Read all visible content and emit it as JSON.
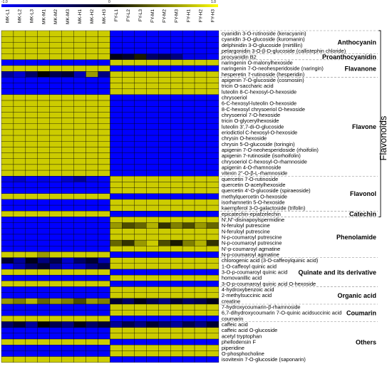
{
  "chart_data": {
    "type": "heatmap",
    "title": "",
    "color_scale": {
      "min": -1.0,
      "mid": 0,
      "max": 1.0,
      "low_color": "#0000ff",
      "mid_color": "#000000",
      "high_color": "#ffff00"
    },
    "colorbar_ticks": [
      "-1.0",
      "0",
      "1.0"
    ],
    "columns": [
      "MK-L1",
      "MK-L2",
      "MK-L3",
      "MK-M1",
      "MK-M2",
      "MK-M3",
      "MK-H1",
      "MK-H2",
      "MK-H3",
      "FY-L1",
      "FY-L2",
      "FY-L3",
      "FY-M1",
      "FY-M2",
      "FY-M3",
      "FY-H1",
      "FY-H2",
      "FY-H3"
    ],
    "rows": [
      "cyanidin 3-O-rutinoside (keracyanin)",
      "cyanidin 3-O-glucoside (kuromanin)",
      "delphinidin 3-O-glucoside (mirtillin)",
      "pelargonidin 3-O-β-D-glucoside (callistephin chloride)",
      "procyanidin B2",
      "naringenin O-malonylhexoside",
      "naringenin 7-O-neohesperidoside (naringin)",
      "hesperetin 7-rutinoside (hesperidin)",
      "apigenin 7-O-glucoside (cosmosiin)",
      "tricin O-saccharic acid",
      "luteolin 8-C-hexosyl-O-hexoside",
      "chrysoeriol",
      "6-C-hexosyl-luteolin O-hexoside",
      "8-C-hexosyl chrysoeriol O-hexoside",
      "chrysoeriol 7-O-hexoside",
      "tricin O-glycerylhexoside",
      "luteolin 3',7-di-O-glucoside",
      "eriodictiol C-hexosyl-O-hexoside",
      "chrysin O-hexoside",
      "chrysin 5-O-glucoside (toringin)",
      "apigenin 7-O-neohesperidoside (rhoifolin)",
      "apigenin 7-rutinoside (isorhoifolin)",
      "chrysoeriol C-hexosyl-O-rhamnoside",
      "apigenin 4-O-rhamnoside",
      "vitexin 2\"-O-β-L-rhamnoside",
      "quercetin 7-O-rutinoside",
      "quercetin O-acetylhexoside",
      "quercetin 4'-O-glucoside (spiraeoside)",
      "methylquercetin O-hexoside",
      "isorhamnetin 5-O-hexoside",
      "kaempferol 3-O-galactoside (trifolin)",
      "epicatechin-epiafzelechin",
      "N',N\"-disinapoylspermidine",
      "N-feruloyl putrescine",
      "N-feruloyl putrescine",
      "N-p-coumaroyl putrescine",
      "N-p-coumaroyl putrescine",
      "N'-p-coumaroyl agmatine",
      "N-p-coumaroyl agmatine",
      "chlorogenic acid (3-O-caffeoylquinic acid)",
      "1-O-caffeoyl quinic acid",
      "3-O-p-coumaroyl quinic acid",
      "homovanillic acid",
      "3-O-p-coumaroyl quinic acid O-hexoside",
      "4-hydroxybenzoic acid",
      "2-methylsuccinic acid",
      "creatine",
      "7-hydroxycoumarin-β-rhamnoside",
      "6,7-dihydroxycoumarin 7-O-quinic acidsuccinic acid",
      "coumarin",
      "caffeic acid",
      "caffeic acid O-glucoside",
      "acetyl tryptophan",
      "phellodensin F",
      "piperidine",
      "O-phosphocholine",
      "isovitexin 7-O-glucoside (saponarin)"
    ],
    "groups": [
      {
        "name": "Anthocyanin",
        "start": 0,
        "end": 3
      },
      {
        "name": "Proanthocyanidin",
        "start": 4,
        "end": 4
      },
      {
        "name": "Flavanone",
        "start": 5,
        "end": 7
      },
      {
        "name": "Flavone",
        "start": 8,
        "end": 24
      },
      {
        "name": "Flavonol",
        "start": 25,
        "end": 30
      },
      {
        "name": "Catechin",
        "start": 31,
        "end": 31
      },
      {
        "name": "Phenolamide",
        "start": 32,
        "end": 38
      },
      {
        "name": "Quinate and its derivative",
        "start": 39,
        "end": 43
      },
      {
        "name": "Organic acid",
        "start": 44,
        "end": 46
      },
      {
        "name": "Coumarin",
        "start": 47,
        "end": 49
      },
      {
        "name": "Others",
        "start": 50,
        "end": 56
      }
    ],
    "bracket_label": "Flavonoids",
    "values": [
      [
        0.8,
        0.8,
        0.8,
        0.8,
        0.8,
        0.8,
        0.8,
        0.8,
        0.8,
        -1.0,
        -1.0,
        -1.0,
        -1.0,
        -1.0,
        -1.0,
        -1.0,
        -1.0,
        -1.0
      ],
      [
        0.8,
        0.8,
        0.8,
        0.8,
        0.8,
        0.8,
        0.8,
        0.8,
        0.8,
        -1.0,
        -1.0,
        -1.0,
        -1.0,
        -1.0,
        -1.0,
        -1.0,
        -1.0,
        -1.0
      ],
      [
        0.8,
        0.8,
        0.8,
        0.8,
        0.8,
        0.8,
        0.8,
        0.8,
        0.8,
        -1.0,
        -1.0,
        -1.0,
        -1.0,
        -1.0,
        -1.0,
        -1.0,
        -1.0,
        -1.0
      ],
      [
        0.8,
        0.8,
        0.8,
        0.8,
        0.8,
        0.8,
        0.8,
        0.8,
        0.8,
        -1.0,
        -1.0,
        -1.0,
        -1.0,
        -1.0,
        -1.0,
        -1.0,
        -1.0,
        -1.0
      ],
      [
        0.8,
        0.8,
        0.8,
        0.8,
        0.8,
        0.8,
        0.8,
        0.8,
        0.8,
        -0.1,
        -0.2,
        0.1,
        -0.4,
        -0.3,
        -0.5,
        -0.9,
        -0.9,
        -1.0
      ],
      [
        -1.0,
        -1.0,
        -1.0,
        -1.0,
        -1.0,
        -1.0,
        -1.0,
        -1.0,
        -1.0,
        0.8,
        0.8,
        0.8,
        0.8,
        0.8,
        0.8,
        0.8,
        0.8,
        0.8
      ],
      [
        0.8,
        0.8,
        0.8,
        0.8,
        0.8,
        0.8,
        0.8,
        0.8,
        0.8,
        -1.0,
        -1.0,
        -1.0,
        -1.0,
        -1.0,
        -1.0,
        -1.0,
        -1.0,
        -1.0
      ],
      [
        -0.6,
        -0.8,
        -0.4,
        0.0,
        -0.3,
        -0.2,
        -0.7,
        0.6,
        -0.5,
        0.8,
        0.8,
        0.8,
        0.8,
        0.8,
        0.8,
        0.8,
        0.8,
        0.8
      ],
      [
        -1.0,
        -1.0,
        -1.0,
        -1.0,
        -1.0,
        -1.0,
        -1.0,
        -1.0,
        -1.0,
        0.8,
        0.8,
        0.8,
        0.8,
        0.8,
        0.8,
        0.8,
        0.8,
        0.8
      ],
      [
        -1.0,
        -1.0,
        -1.0,
        -1.0,
        -1.0,
        -1.0,
        -1.0,
        -1.0,
        -1.0,
        0.8,
        0.8,
        0.8,
        0.8,
        0.8,
        0.8,
        0.8,
        0.8,
        0.8
      ],
      [
        -1.0,
        -1.0,
        -1.0,
        -1.0,
        -1.0,
        -1.0,
        -1.0,
        -1.0,
        -1.0,
        0.8,
        0.8,
        0.8,
        0.8,
        0.8,
        0.8,
        0.8,
        0.8,
        0.8
      ],
      [
        0.8,
        0.8,
        0.8,
        0.8,
        0.8,
        0.8,
        0.8,
        0.8,
        0.8,
        -1.0,
        -1.0,
        -1.0,
        -1.0,
        -1.0,
        -1.0,
        -1.0,
        -1.0,
        -1.0
      ],
      [
        0.8,
        0.8,
        0.8,
        0.8,
        0.8,
        0.8,
        0.8,
        0.8,
        0.8,
        -1.0,
        -1.0,
        -1.0,
        -1.0,
        -1.0,
        -1.0,
        -1.0,
        -1.0,
        -1.0
      ],
      [
        0.8,
        0.8,
        0.8,
        0.8,
        0.8,
        0.8,
        0.8,
        0.8,
        0.8,
        -1.0,
        -1.0,
        -1.0,
        -1.0,
        -1.0,
        -1.0,
        -1.0,
        -1.0,
        -1.0
      ],
      [
        0.8,
        0.8,
        0.8,
        0.8,
        0.8,
        0.8,
        0.8,
        0.8,
        0.8,
        -1.0,
        -1.0,
        -1.0,
        -1.0,
        -1.0,
        -1.0,
        -1.0,
        -1.0,
        -1.0
      ],
      [
        0.8,
        0.8,
        0.8,
        0.8,
        0.8,
        0.8,
        0.8,
        0.8,
        0.8,
        -1.0,
        -1.0,
        -1.0,
        -1.0,
        -1.0,
        -1.0,
        -1.0,
        -1.0,
        -1.0
      ],
      [
        0.8,
        0.8,
        0.8,
        0.8,
        0.8,
        0.8,
        0.8,
        0.8,
        0.8,
        -1.0,
        -1.0,
        -1.0,
        -1.0,
        -1.0,
        -1.0,
        -1.0,
        -1.0,
        -1.0
      ],
      [
        0.8,
        0.8,
        0.8,
        0.8,
        0.8,
        0.8,
        0.8,
        0.8,
        0.8,
        -1.0,
        -1.0,
        -1.0,
        -1.0,
        -1.0,
        -1.0,
        -1.0,
        -1.0,
        -1.0
      ],
      [
        0.8,
        0.8,
        0.8,
        0.8,
        0.8,
        0.8,
        0.8,
        0.8,
        0.8,
        -1.0,
        -1.0,
        -1.0,
        -1.0,
        -1.0,
        -1.0,
        -1.0,
        -1.0,
        -1.0
      ],
      [
        0.8,
        0.8,
        0.8,
        0.8,
        0.8,
        0.8,
        0.8,
        0.8,
        0.8,
        -1.0,
        -1.0,
        -1.0,
        -1.0,
        -1.0,
        -1.0,
        -1.0,
        -1.0,
        -1.0
      ],
      [
        0.8,
        0.8,
        0.8,
        0.8,
        0.8,
        0.8,
        0.8,
        0.8,
        0.8,
        -1.0,
        -1.0,
        -1.0,
        -1.0,
        -1.0,
        -1.0,
        -1.0,
        -1.0,
        -1.0
      ],
      [
        0.8,
        0.8,
        0.8,
        0.8,
        0.8,
        0.8,
        0.8,
        0.8,
        0.8,
        -1.0,
        -1.0,
        -1.0,
        -1.0,
        -1.0,
        -1.0,
        -1.0,
        -1.0,
        -1.0
      ],
      [
        0.8,
        0.8,
        0.8,
        0.8,
        0.8,
        0.8,
        0.8,
        0.8,
        0.8,
        -1.0,
        -1.0,
        -1.0,
        -1.0,
        -1.0,
        -1.0,
        -1.0,
        -1.0,
        -1.0
      ],
      [
        0.8,
        0.8,
        0.8,
        0.8,
        0.8,
        0.8,
        0.8,
        0.8,
        0.8,
        -1.0,
        -1.0,
        -1.0,
        -1.0,
        -1.0,
        -1.0,
        -1.0,
        -1.0,
        -1.0
      ],
      [
        0.8,
        0.8,
        0.8,
        0.8,
        0.8,
        0.8,
        0.8,
        0.8,
        0.8,
        -1.0,
        -1.0,
        -1.0,
        -1.0,
        -1.0,
        -1.0,
        -1.0,
        -1.0,
        -1.0
      ],
      [
        -0.9,
        -0.8,
        -1.0,
        -0.9,
        -1.0,
        -0.8,
        -0.6,
        -0.9,
        -1.0,
        0.8,
        0.8,
        0.8,
        0.8,
        0.8,
        0.8,
        0.8,
        0.8,
        0.8
      ],
      [
        -1.0,
        -1.0,
        -1.0,
        -1.0,
        -1.0,
        -1.0,
        -1.0,
        -1.0,
        -1.0,
        0.8,
        0.8,
        0.8,
        0.8,
        0.8,
        0.8,
        0.8,
        0.8,
        0.8
      ],
      [
        -1.0,
        -1.0,
        -1.0,
        -1.0,
        -1.0,
        -1.0,
        -1.0,
        -1.0,
        -1.0,
        0.8,
        0.8,
        0.8,
        0.8,
        0.8,
        0.8,
        0.8,
        0.8,
        0.8
      ],
      [
        0.8,
        0.8,
        0.8,
        0.8,
        0.8,
        0.8,
        0.8,
        0.8,
        0.8,
        -1.0,
        -1.0,
        -1.0,
        -1.0,
        -1.0,
        -1.0,
        -1.0,
        -1.0,
        -1.0
      ],
      [
        -1.0,
        -1.0,
        -1.0,
        -1.0,
        -1.0,
        -1.0,
        -1.0,
        -1.0,
        -1.0,
        0.8,
        0.8,
        0.8,
        0.8,
        0.8,
        0.8,
        0.8,
        0.8,
        0.8
      ],
      [
        -1.0,
        -1.0,
        -1.0,
        -1.0,
        -1.0,
        -1.0,
        -1.0,
        -1.0,
        -1.0,
        0.8,
        0.8,
        0.8,
        0.8,
        0.8,
        0.8,
        0.8,
        0.8,
        0.8
      ],
      [
        0.8,
        0.8,
        0.8,
        0.8,
        0.8,
        0.8,
        0.8,
        0.8,
        0.8,
        -1.0,
        -1.0,
        -1.0,
        -1.0,
        -1.0,
        -1.0,
        -1.0,
        -1.0,
        -1.0
      ],
      [
        -1.0,
        -1.0,
        -1.0,
        -1.0,
        -1.0,
        -1.0,
        -1.0,
        -1.0,
        -1.0,
        0.8,
        0.8,
        0.8,
        0.8,
        0.8,
        0.8,
        0.8,
        0.8,
        0.8
      ],
      [
        -1.0,
        -1.0,
        -1.0,
        -1.0,
        -1.0,
        -1.0,
        -1.0,
        -1.0,
        -1.0,
        0.6,
        0.3,
        0.4,
        0.7,
        0.2,
        0.5,
        0.3,
        0.6,
        0.4
      ],
      [
        -1.0,
        -1.0,
        -1.0,
        -1.0,
        -1.0,
        -1.0,
        -1.0,
        -1.0,
        -1.0,
        0.8,
        0.8,
        0.8,
        0.8,
        0.8,
        0.8,
        0.8,
        0.8,
        0.8
      ],
      [
        -1.0,
        -1.0,
        -1.0,
        -1.0,
        -1.0,
        -1.0,
        -1.0,
        -1.0,
        -1.0,
        0.8,
        0.8,
        0.8,
        0.8,
        0.8,
        0.8,
        0.8,
        0.8,
        0.8
      ],
      [
        -1.0,
        -1.0,
        -1.0,
        -1.0,
        -1.0,
        -1.0,
        -1.0,
        -1.0,
        -1.0,
        0.4,
        0.2,
        0.6,
        0.8,
        0.3,
        0.1,
        0.5,
        0.7,
        0.2
      ],
      [
        -1.0,
        -1.0,
        -1.0,
        -1.0,
        -1.0,
        -1.0,
        -1.0,
        -1.0,
        -1.0,
        0.8,
        0.8,
        0.8,
        0.8,
        0.8,
        0.8,
        0.8,
        0.8,
        0.8
      ],
      [
        0.8,
        0.8,
        0.8,
        0.6,
        0.8,
        0.8,
        0.8,
        0.8,
        0.8,
        -1.0,
        -1.0,
        -1.0,
        -1.0,
        -1.0,
        -1.0,
        -1.0,
        -1.0,
        -1.0
      ],
      [
        -0.2,
        -0.6,
        -0.1,
        -0.5,
        -0.3,
        -0.8,
        -0.4,
        -0.2,
        -0.7,
        0.8,
        0.8,
        0.8,
        0.8,
        0.8,
        0.8,
        0.8,
        0.8,
        0.8
      ],
      [
        -1.0,
        -0.7,
        -0.4,
        -0.2,
        -0.6,
        -0.9,
        -0.8,
        -0.5,
        -0.3,
        0.8,
        0.8,
        0.8,
        0.8,
        0.8,
        0.8,
        0.8,
        0.8,
        0.8
      ],
      [
        0.8,
        0.8,
        0.8,
        0.8,
        0.8,
        0.8,
        0.8,
        0.8,
        0.8,
        -1.0,
        -1.0,
        -1.0,
        -1.0,
        -1.0,
        -1.0,
        -1.0,
        -1.0,
        -1.0
      ],
      [
        -1.0,
        -1.0,
        -1.0,
        -1.0,
        -1.0,
        -1.0,
        -1.0,
        -1.0,
        -1.0,
        0.8,
        0.8,
        0.8,
        0.8,
        0.8,
        0.8,
        0.8,
        0.8,
        0.8
      ],
      [
        0.8,
        0.8,
        0.8,
        0.8,
        0.8,
        0.8,
        0.8,
        0.8,
        0.8,
        -1.0,
        -1.0,
        -1.0,
        -1.0,
        -1.0,
        -1.0,
        -1.0,
        -1.0,
        -1.0
      ],
      [
        -1.0,
        -1.0,
        -1.0,
        -1.0,
        -1.0,
        -1.0,
        -1.0,
        -1.0,
        -1.0,
        0.8,
        0.8,
        0.8,
        0.8,
        0.8,
        0.8,
        0.8,
        0.8,
        0.8
      ],
      [
        -1.0,
        -1.0,
        -1.0,
        -1.0,
        -1.0,
        -1.0,
        -1.0,
        -1.0,
        -1.0,
        0.8,
        0.8,
        0.8,
        0.8,
        0.8,
        0.8,
        0.8,
        0.8,
        0.8
      ],
      [
        0.6,
        0.5,
        0.7,
        0.4,
        0.6,
        0.5,
        0.3,
        0.6,
        0.5,
        -0.2,
        -0.4,
        -0.1,
        -0.3,
        -0.5,
        -0.2,
        -0.4,
        -0.3,
        -0.1
      ],
      [
        -1.0,
        -1.0,
        -1.0,
        -1.0,
        -1.0,
        -1.0,
        -1.0,
        -1.0,
        -1.0,
        0.8,
        0.8,
        0.8,
        0.8,
        0.8,
        0.8,
        0.8,
        0.8,
        0.8
      ],
      [
        -1.0,
        -1.0,
        -1.0,
        -1.0,
        -1.0,
        -1.0,
        -1.0,
        -1.0,
        -1.0,
        0.8,
        0.8,
        0.8,
        0.8,
        0.8,
        0.8,
        0.8,
        0.8,
        0.8
      ],
      [
        0.8,
        0.8,
        0.8,
        0.8,
        0.8,
        0.8,
        0.8,
        0.8,
        0.8,
        -1.0,
        -1.0,
        -1.0,
        -1.0,
        -1.0,
        -1.0,
        -1.0,
        -1.0,
        -1.0
      ],
      [
        -0.4,
        -0.2,
        -0.6,
        0.0,
        -0.3,
        -0.5,
        -0.1,
        -0.4,
        -0.2,
        -0.6,
        -0.3,
        -0.5,
        -0.2,
        -0.4,
        -0.6,
        -0.3,
        -0.5,
        -0.2
      ],
      [
        -1.0,
        -1.0,
        -1.0,
        -1.0,
        -1.0,
        -1.0,
        -1.0,
        -1.0,
        -1.0,
        0.8,
        0.8,
        0.8,
        0.8,
        0.8,
        0.8,
        0.8,
        0.8,
        0.8
      ],
      [
        -1.0,
        -1.0,
        -1.0,
        -1.0,
        -1.0,
        -1.0,
        -1.0,
        -1.0,
        -1.0,
        0.8,
        0.8,
        0.8,
        0.8,
        0.8,
        0.8,
        0.8,
        0.8,
        0.8
      ],
      [
        0.8,
        0.8,
        0.8,
        0.8,
        0.8,
        0.8,
        0.8,
        0.8,
        0.8,
        -1.0,
        -1.0,
        -1.0,
        -1.0,
        -1.0,
        -1.0,
        -1.0,
        -1.0,
        -1.0
      ],
      [
        -1.0,
        -1.0,
        -1.0,
        -1.0,
        -1.0,
        -1.0,
        -1.0,
        -1.0,
        -1.0,
        0.8,
        0.8,
        0.8,
        0.8,
        0.8,
        0.8,
        0.8,
        0.8,
        0.8
      ],
      [
        -1.0,
        -1.0,
        -1.0,
        -1.0,
        -1.0,
        -1.0,
        -1.0,
        -1.0,
        -1.0,
        0.8,
        0.8,
        0.8,
        0.8,
        0.8,
        0.8,
        0.8,
        0.8,
        0.8
      ],
      [
        0.8,
        0.8,
        0.8,
        0.8,
        0.8,
        0.8,
        0.8,
        0.8,
        0.8,
        -1.0,
        -1.0,
        -1.0,
        -1.0,
        -1.0,
        -1.0,
        -1.0,
        -1.0,
        -1.0
      ]
    ]
  }
}
